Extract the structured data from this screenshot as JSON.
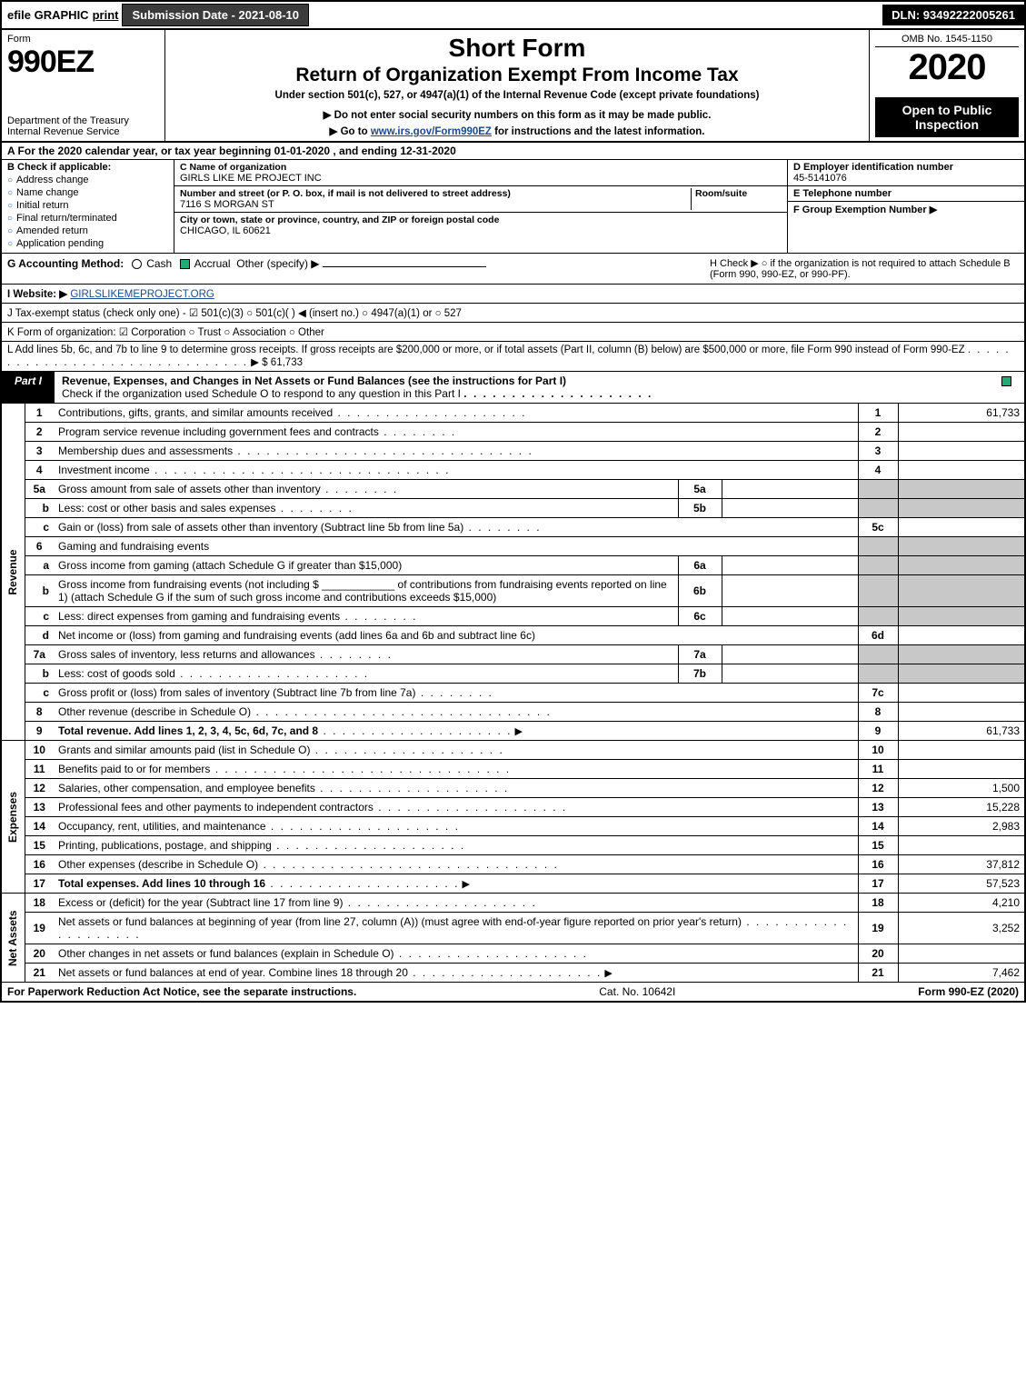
{
  "topbar": {
    "efile": "efile GRAPHIC",
    "print": "print",
    "submission_btn": "Submission Date - 2021-08-10",
    "dln": "DLN: 93492222005261"
  },
  "header": {
    "form_label": "Form",
    "form_number": "990EZ",
    "dept": "Department of the Treasury\nInternal Revenue Service",
    "short_form": "Short Form",
    "return_title": "Return of Organization Exempt From Income Tax",
    "under_section": "Under section 501(c), 527, or 4947(a)(1) of the Internal Revenue Code (except private foundations)",
    "notice": "▶ Do not enter social security numbers on this form as it may be made public.",
    "goto": "▶ Go to www.irs.gov/Form990EZ for instructions and the latest information.",
    "omb": "OMB No. 1545-1150",
    "year": "2020",
    "open": "Open to Public Inspection"
  },
  "section_a": "A  For the 2020 calendar year, or tax year beginning 01-01-2020 , and ending 12-31-2020",
  "col_b": {
    "header": "B  Check if applicable:",
    "items": [
      "Address change",
      "Name change",
      "Initial return",
      "Final return/terminated",
      "Amended return",
      "Application pending"
    ]
  },
  "col_c": {
    "name_label": "C Name of organization",
    "name_val": "GIRLS LIKE ME PROJECT INC",
    "addr_label": "Number and street (or P. O. box, if mail is not delivered to street address)",
    "addr_val": "7116 S MORGAN ST",
    "room_label": "Room/suite",
    "city_label": "City or town, state or province, country, and ZIP or foreign postal code",
    "city_val": "CHICAGO, IL  60621"
  },
  "col_d": {
    "d_label": "D Employer identification number",
    "d_val": "45-5141076",
    "e_label": "E Telephone number",
    "f_label": "F Group Exemption Number   ▶"
  },
  "row_g": {
    "g_label": "G Accounting Method:",
    "g_cash": "Cash",
    "g_accrual": "Accrual",
    "g_other": "Other (specify) ▶",
    "h_text": "H  Check ▶  ○  if the organization is not required to attach Schedule B (Form 990, 990-EZ, or 990-PF)."
  },
  "row_i": {
    "label": "I Website: ▶",
    "val": "GIRLSLIKEMEPROJECT.ORG"
  },
  "row_j": "J Tax-exempt status (check only one) - ☑ 501(c)(3) ○ 501(c)(  ) ◀ (insert no.) ○ 4947(a)(1) or ○ 527",
  "row_k": "K Form of organization:   ☑ Corporation  ○ Trust  ○ Association  ○ Other",
  "row_l": {
    "text": "L Add lines 5b, 6c, and 7b to line 9 to determine gross receipts. If gross receipts are $200,000 or more, or if total assets (Part II, column (B) below) are $500,000 or more, file Form 990 instead of Form 990-EZ",
    "arrow": "▶",
    "val": "$ 61,733"
  },
  "part1": {
    "tab": "Part I",
    "title": "Revenue, Expenses, and Changes in Net Assets or Fund Balances (see the instructions for Part I)",
    "subtitle": "Check if the organization used Schedule O to respond to any question in this Part I"
  },
  "side": {
    "revenue": "Revenue",
    "expenses": "Expenses",
    "netassets": "Net Assets"
  },
  "lines": {
    "l1": {
      "no": "1",
      "desc": "Contributions, gifts, grants, and similar amounts received",
      "val": "61,733"
    },
    "l2": {
      "no": "2",
      "desc": "Program service revenue including government fees and contracts",
      "val": ""
    },
    "l3": {
      "no": "3",
      "desc": "Membership dues and assessments",
      "val": ""
    },
    "l4": {
      "no": "4",
      "desc": "Investment income",
      "val": ""
    },
    "l5a": {
      "no": "5a",
      "desc": "Gross amount from sale of assets other than inventory",
      "inner": "5a"
    },
    "l5b": {
      "no": "b",
      "desc": "Less: cost or other basis and sales expenses",
      "inner": "5b"
    },
    "l5c": {
      "no": "c",
      "desc": "Gain or (loss) from sale of assets other than inventory (Subtract line 5b from line 5a)",
      "outer": "5c"
    },
    "l6": {
      "no": "6",
      "desc": "Gaming and fundraising events"
    },
    "l6a": {
      "no": "a",
      "desc": "Gross income from gaming (attach Schedule G if greater than $15,000)",
      "inner": "6a"
    },
    "l6b": {
      "no": "b",
      "desc": "Gross income from fundraising events (not including $ ____________ of contributions from fundraising events reported on line 1) (attach Schedule G if the sum of such gross income and contributions exceeds $15,000)",
      "inner": "6b"
    },
    "l6c": {
      "no": "c",
      "desc": "Less: direct expenses from gaming and fundraising events",
      "inner": "6c"
    },
    "l6d": {
      "no": "d",
      "desc": "Net income or (loss) from gaming and fundraising events (add lines 6a and 6b and subtract line 6c)",
      "outer": "6d"
    },
    "l7a": {
      "no": "7a",
      "desc": "Gross sales of inventory, less returns and allowances",
      "inner": "7a"
    },
    "l7b": {
      "no": "b",
      "desc": "Less: cost of goods sold",
      "inner": "7b"
    },
    "l7c": {
      "no": "c",
      "desc": "Gross profit or (loss) from sales of inventory (Subtract line 7b from line 7a)",
      "outer": "7c"
    },
    "l8": {
      "no": "8",
      "desc": "Other revenue (describe in Schedule O)",
      "outer": "8"
    },
    "l9": {
      "no": "9",
      "desc": "Total revenue. Add lines 1, 2, 3, 4, 5c, 6d, 7c, and 8",
      "outer": "9",
      "val": "61,733"
    },
    "l10": {
      "no": "10",
      "desc": "Grants and similar amounts paid (list in Schedule O)",
      "val": ""
    },
    "l11": {
      "no": "11",
      "desc": "Benefits paid to or for members",
      "val": ""
    },
    "l12": {
      "no": "12",
      "desc": "Salaries, other compensation, and employee benefits",
      "val": "1,500"
    },
    "l13": {
      "no": "13",
      "desc": "Professional fees and other payments to independent contractors",
      "val": "15,228"
    },
    "l14": {
      "no": "14",
      "desc": "Occupancy, rent, utilities, and maintenance",
      "val": "2,983"
    },
    "l15": {
      "no": "15",
      "desc": "Printing, publications, postage, and shipping",
      "val": ""
    },
    "l16": {
      "no": "16",
      "desc": "Other expenses (describe in Schedule O)",
      "val": "37,812"
    },
    "l17": {
      "no": "17",
      "desc": "Total expenses. Add lines 10 through 16",
      "val": "57,523"
    },
    "l18": {
      "no": "18",
      "desc": "Excess or (deficit) for the year (Subtract line 17 from line 9)",
      "val": "4,210"
    },
    "l19": {
      "no": "19",
      "desc": "Net assets or fund balances at beginning of year (from line 27, column (A)) (must agree with end-of-year figure reported on prior year's return)",
      "val": "3,252"
    },
    "l20": {
      "no": "20",
      "desc": "Other changes in net assets or fund balances (explain in Schedule O)",
      "val": ""
    },
    "l21": {
      "no": "21",
      "desc": "Net assets or fund balances at end of year. Combine lines 18 through 20",
      "val": "7,462"
    }
  },
  "footer": {
    "left": "For Paperwork Reduction Act Notice, see the separate instructions.",
    "mid": "Cat. No. 10642I",
    "right": "Form 990-EZ (2020)"
  },
  "colors": {
    "black": "#000000",
    "darkbtn": "#3b3b3b",
    "grey": "#c8c8c8",
    "link": "#1a4b8c",
    "checkgreen": "#22aa77",
    "bluecircle": "#1a5fb4"
  }
}
